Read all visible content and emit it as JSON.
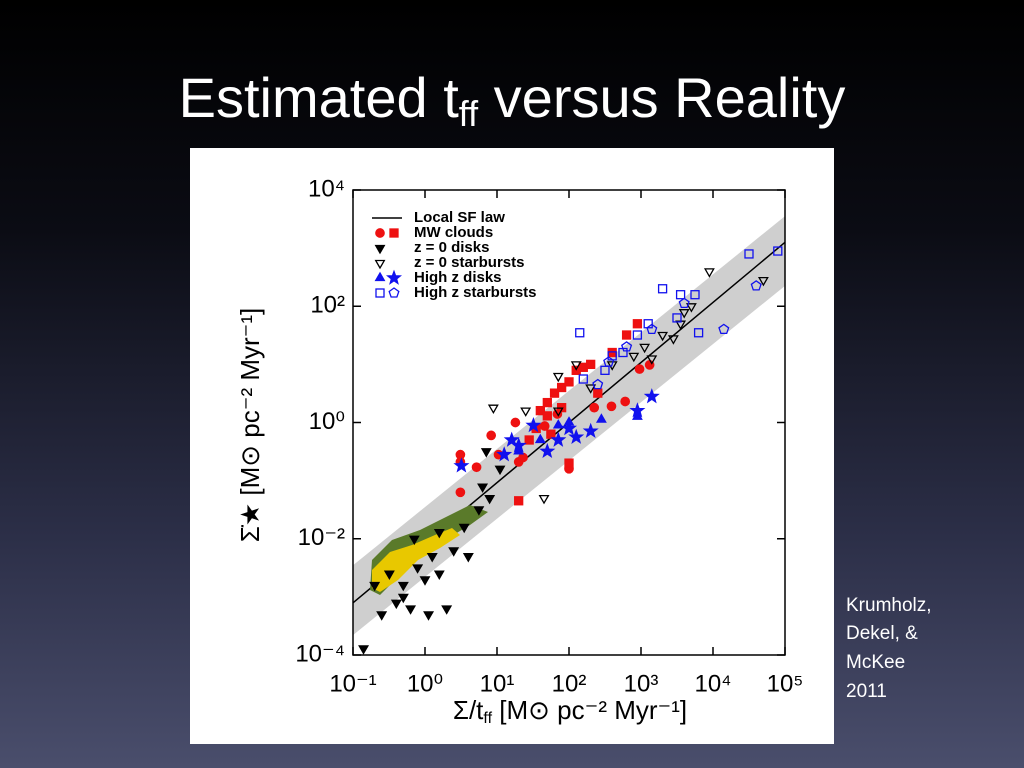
{
  "title_parts": [
    "Estimated t",
    "ff",
    " versus Reality"
  ],
  "credit_lines": [
    "Krumholz,",
    "Dekel, &",
    "McKee",
    "2011"
  ],
  "chart_data": {
    "type": "scatter",
    "x_label_parts": [
      "Σ/t",
      "ff",
      " [M⊙ pc⁻² Myr⁻¹]"
    ],
    "y_label": "Σ̇★ [M⊙ pc⁻² Myr⁻¹]",
    "xscale": "log",
    "yscale": "log",
    "xlim": [
      0.1,
      100000
    ],
    "ylim": [
      0.0001,
      10000
    ],
    "xticks": [
      {
        "value": 0.1,
        "label": "10⁻¹"
      },
      {
        "value": 1,
        "label": "10⁰"
      },
      {
        "value": 10,
        "label": "10¹"
      },
      {
        "value": 100,
        "label": "10²"
      },
      {
        "value": 1000,
        "label": "10³"
      },
      {
        "value": 10000,
        "label": "10⁴"
      },
      {
        "value": 100000,
        "label": "10⁵"
      }
    ],
    "yticks": [
      {
        "value": 0.0001,
        "label": "10⁻⁴"
      },
      {
        "value": 0.01,
        "label": "10⁻²"
      },
      {
        "value": 1,
        "label": "10⁰"
      },
      {
        "value": 100,
        "label": "10²"
      },
      {
        "value": 10000,
        "label": "10⁴"
      }
    ],
    "band": {
      "color": "#cfcfcf",
      "x": [
        0.1,
        100000
      ],
      "lower": [
        0.00022,
        224
      ],
      "upper": [
        0.0035,
        3548
      ]
    },
    "line": {
      "name": "Local SF law",
      "color": "#000000",
      "x": [
        0.1,
        100000
      ],
      "values": [
        0.00079,
        1259
      ]
    },
    "series": [
      {
        "name": "MW clouds",
        "color": "#ee1111",
        "filled": true,
        "groups": [
          {
            "marker": "circle",
            "x": [
              3.1,
              3.1,
              8.3,
              10.5,
              20,
              23,
              3.1,
              5.2,
              224,
              389,
              603,
              955,
              1318,
              69,
              100,
              18,
              46
            ],
            "values": [
              0.28,
              0.21,
              0.6,
              0.28,
              0.21,
              0.25,
              0.063,
              0.17,
              1.8,
              1.9,
              2.3,
              8.3,
              9.8,
              1.4,
              0.16,
              1.0,
              0.87
            ]
          },
          {
            "marker": "square",
            "x": [
              40,
              50,
              63,
              79,
              100,
              126,
              158,
              35,
              50,
              79,
              200,
              398,
              631,
              891,
              28,
              100,
              20,
              251,
              56
            ],
            "values": [
              1.6,
              2.2,
              3.2,
              4.0,
              5.0,
              7.9,
              8.9,
              0.79,
              1.3,
              1.8,
              10,
              16,
              32,
              50,
              0.5,
              0.2,
              0.045,
              3.2,
              0.63
            ]
          }
        ]
      },
      {
        "name": "z = 0 disks",
        "color": "#000000",
        "filled": true,
        "groups": [
          {
            "marker": "triangle-down",
            "x": [
              0.14,
              0.32,
              0.4,
              0.5,
              0.63,
              0.79,
              1,
              1.26,
              1.58,
              0.25,
              0.5,
              1.12,
              2.5,
              3.5,
              5.6,
              7.9,
              4,
              0.2,
              2,
              0.71,
              6.3,
              11,
              7.1,
              1.58
            ],
            "values": [
              0.00013,
              0.0025,
              0.00079,
              0.0016,
              0.00063,
              0.0032,
              0.002,
              0.005,
              0.0025,
              0.0005,
              0.001,
              0.0005,
              0.0063,
              0.016,
              0.032,
              0.05,
              0.005,
              0.0016,
              0.00063,
              0.01,
              0.079,
              0.16,
              0.32,
              0.013
            ]
          }
        ]
      },
      {
        "name": "z = 0 starbursts",
        "color": "#000000",
        "filled": false,
        "groups": [
          {
            "marker": "triangle-down",
            "x": [
              8.9,
              25,
              45,
              71,
              126,
              200,
              398,
              794,
              1122,
              1995,
              3548,
              3981,
              5012,
              2818,
              8913,
              50119,
              71,
              1413
            ],
            "values": [
              1.8,
              1.6,
              0.05,
              6.3,
              10,
              4,
              10,
              14,
              20,
              32,
              50,
              79,
              100,
              28,
              398,
              282,
              1.6,
              12.6
            ]
          }
        ]
      },
      {
        "name": "High z disks",
        "color": "#1111ee",
        "filled": true,
        "groups": [
          {
            "marker": "triangle",
            "x": [
              40,
              71,
              100,
              282,
              891,
              20
            ],
            "values": [
              0.5,
              0.89,
              1.0,
              1.12,
              1.26,
              0.32
            ]
          },
          {
            "marker": "star",
            "x": [
              3.2,
              16,
              20,
              32,
              50,
              71,
              100,
              126,
              200,
              891,
              1413,
              12.6
            ],
            "values": [
              0.18,
              0.5,
              0.4,
              0.89,
              0.32,
              0.5,
              0.79,
              0.56,
              0.71,
              1.6,
              2.8,
              0.28
            ]
          }
        ]
      },
      {
        "name": "High z starbursts",
        "color": "#1111ee",
        "filled": false,
        "groups": [
          {
            "marker": "square",
            "x": [
              141,
              158,
              398,
              562,
              1259,
              1995,
              3548,
              5623,
              31623,
              79433,
              6310,
              3162,
              316,
              891
            ],
            "values": [
              35,
              5.6,
              14,
              16,
              50,
              200,
              158,
              158,
              794,
              891,
              35,
              63,
              7.9,
              32
            ]
          },
          {
            "marker": "pentagon",
            "x": [
              355,
              631,
              1413,
              3981,
              14125,
              39811,
              251
            ],
            "values": [
              11,
              20,
              40,
              112,
              40,
              224,
              4.5
            ]
          }
        ]
      }
    ]
  }
}
